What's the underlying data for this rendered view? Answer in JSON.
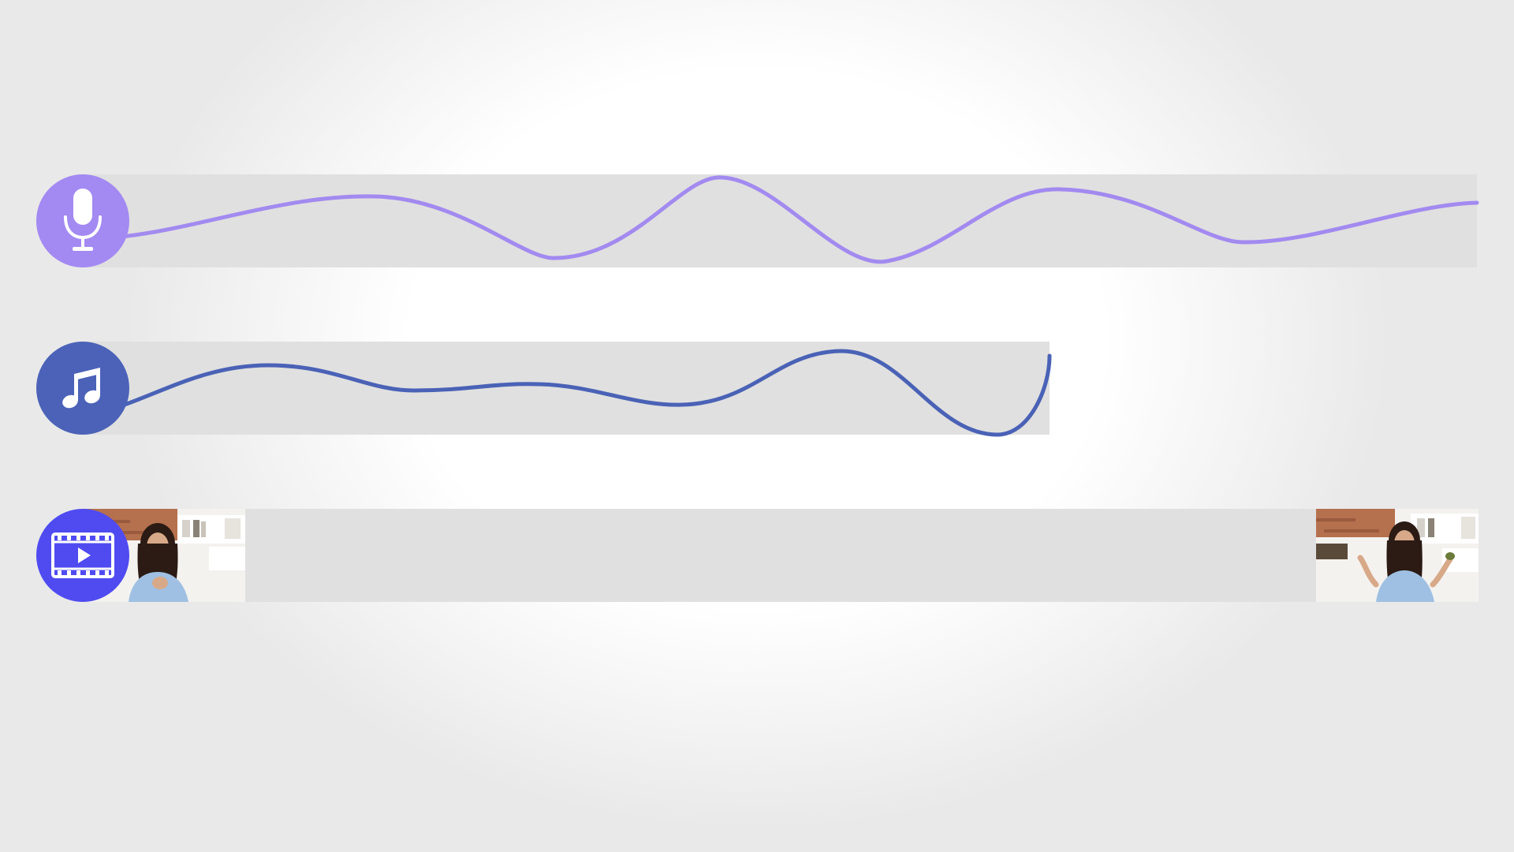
{
  "tracks": [
    {
      "id": "voice",
      "icon": "microphone-icon",
      "color": "#a389f2",
      "wave_color": "#a28af0"
    },
    {
      "id": "music",
      "icon": "music-note-icon",
      "color": "#4b62b8",
      "wave_color": "#4a62b6"
    },
    {
      "id": "video",
      "icon": "video-play-icon",
      "color": "#4f4bf0",
      "thumbnails": [
        "video-thumbnail-start",
        "video-thumbnail-end"
      ]
    }
  ],
  "colors": {
    "track_background": "#e0e0e0",
    "page_background": "#ffffff"
  }
}
